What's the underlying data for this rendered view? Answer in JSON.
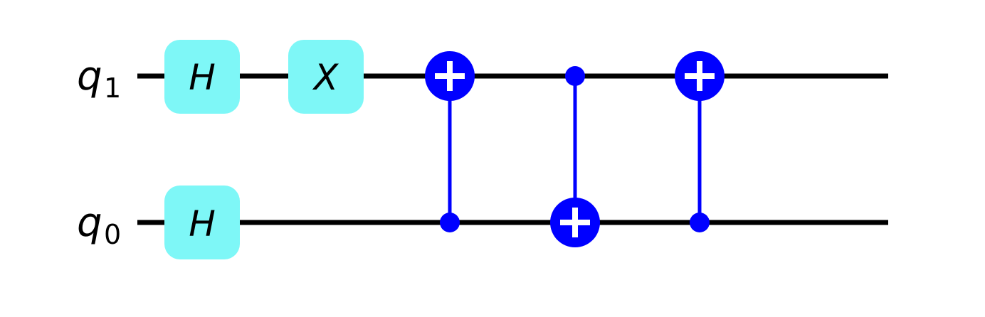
{
  "circuit": {
    "colors": {
      "wire": "#000000",
      "single_gate_fill": "#7ef7f7",
      "controlled_gate": "#0000ff",
      "target_plus": "#ffffff",
      "gate_text": "#000000"
    },
    "qubits": [
      {
        "id": "q1",
        "label_main": "q",
        "label_sub": "1"
      },
      {
        "id": "q0",
        "label_main": "q",
        "label_sub": "0"
      }
    ],
    "single_qubit_gates": [
      {
        "name": "H",
        "qubit": "q1",
        "step": 0
      },
      {
        "name": "X",
        "qubit": "q1",
        "step": 1
      },
      {
        "name": "H",
        "qubit": "q0",
        "step": 0
      }
    ],
    "cnot_gates": [
      {
        "control": "q0",
        "target": "q1",
        "step": 2
      },
      {
        "control": "q1",
        "target": "q0",
        "step": 3
      },
      {
        "control": "q0",
        "target": "q1",
        "step": 4
      }
    ]
  }
}
